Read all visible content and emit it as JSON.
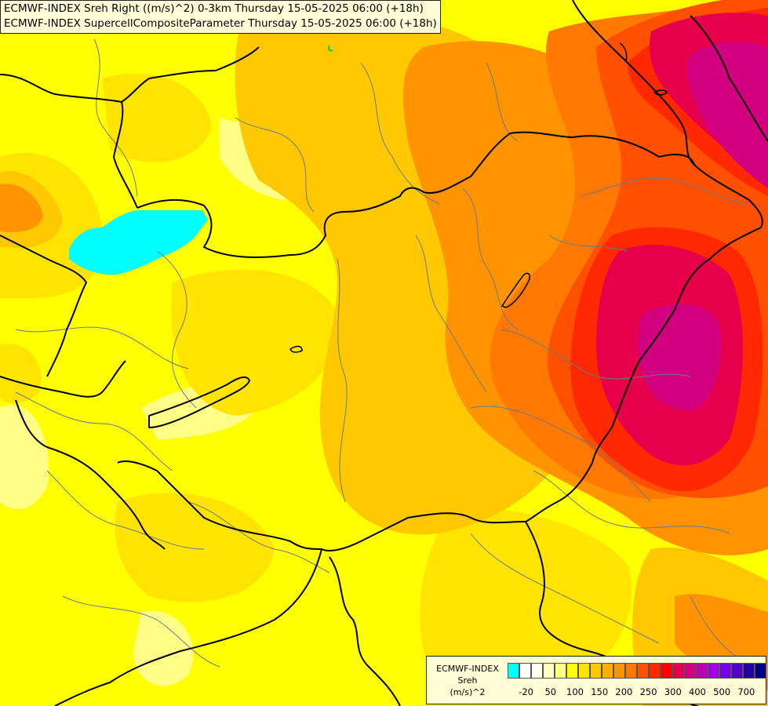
{
  "title": {
    "line1": "ECMWF-INDEX Sreh Right ((m/s)^2) 0-3km Thursday 15-05-2025 06:00 (+18h)",
    "line2": "ECMWF-INDEX SupercellCompositeParameter Thursday 15-05-2025 06:00 (+18h)"
  },
  "legend": {
    "source": "ECMWF-INDEX",
    "variable": "Sreh",
    "unit": "(m/s)^2",
    "colors": [
      "#00ffff",
      "#ffffff",
      "#fffff0",
      "#ffffc0",
      "#ffff80",
      "#ffff00",
      "#ffe400",
      "#ffc800",
      "#ffae00",
      "#ff9400",
      "#ff7800",
      "#ff5000",
      "#ff2800",
      "#ff0000",
      "#e6004c",
      "#d2007e",
      "#be00b4",
      "#a000e6",
      "#7800e6",
      "#5000c8",
      "#2800a0",
      "#000080"
    ],
    "ticks": [
      {
        "label": "-20",
        "index": 1
      },
      {
        "label": "50",
        "index": 3
      },
      {
        "label": "100",
        "index": 5
      },
      {
        "label": "150",
        "index": 7
      },
      {
        "label": "200",
        "index": 9
      },
      {
        "label": "250",
        "index": 11
      },
      {
        "label": "300",
        "index": 13
      },
      {
        "label": "400",
        "index": 15
      },
      {
        "label": "500",
        "index": 17
      },
      {
        "label": "700",
        "index": 19
      }
    ]
  },
  "map": {
    "background_color": "#ffff00",
    "border_color": "#000000",
    "region_line_color": "#6a7a8a"
  }
}
